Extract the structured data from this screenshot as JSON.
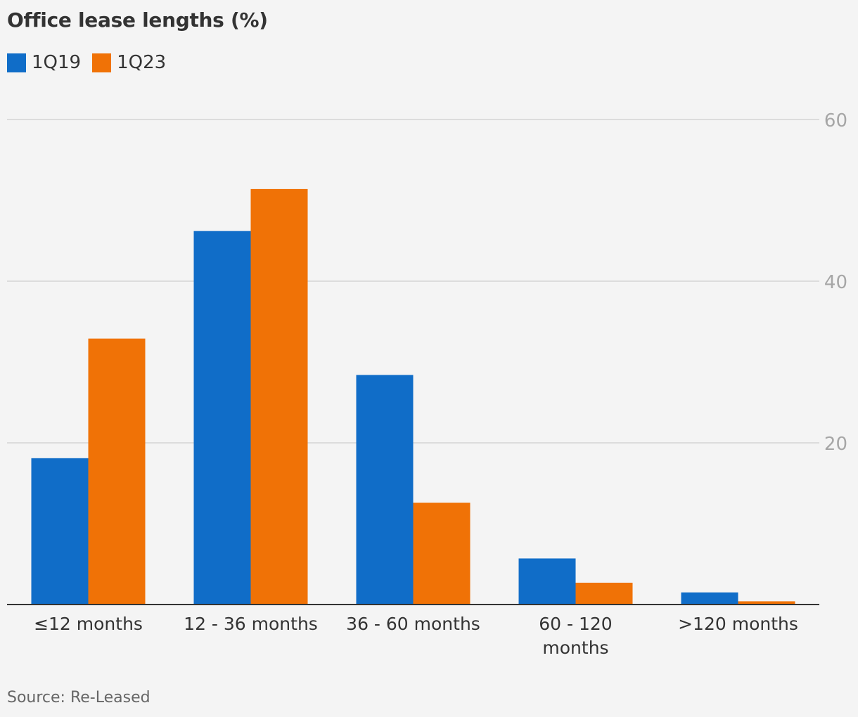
{
  "title": "Office lease lengths (%)",
  "source": "Source: Re-Leased",
  "colors": {
    "1Q19": "#106dc8",
    "1Q23": "#f07206",
    "grid": "#dcdcdc",
    "axis": "#333333",
    "tick": "#a6a6a6"
  },
  "legend": [
    {
      "label": "1Q19",
      "color": "#106dc8"
    },
    {
      "label": "1Q23",
      "color": "#f07206"
    }
  ],
  "chart_data": {
    "type": "bar",
    "title": "Office lease lengths (%)",
    "categories": [
      [
        "≤12 months"
      ],
      [
        "12 - 36 months"
      ],
      [
        "36 - 60 months"
      ],
      [
        "60 - 120",
        "months"
      ],
      [
        ">120 months"
      ]
    ],
    "series": [
      {
        "name": "1Q19",
        "values": [
          18.1,
          46.2,
          28.4,
          5.7,
          1.5
        ]
      },
      {
        "name": "1Q23",
        "values": [
          32.9,
          51.4,
          12.6,
          2.7,
          0.4
        ]
      }
    ],
    "ylim": [
      0,
      60
    ],
    "yticks": [
      20,
      40,
      60
    ],
    "ytick_labels": [
      "20",
      "40",
      "60"
    ],
    "grid": true,
    "y_axis_side": "right",
    "legend_position": "top-left"
  }
}
